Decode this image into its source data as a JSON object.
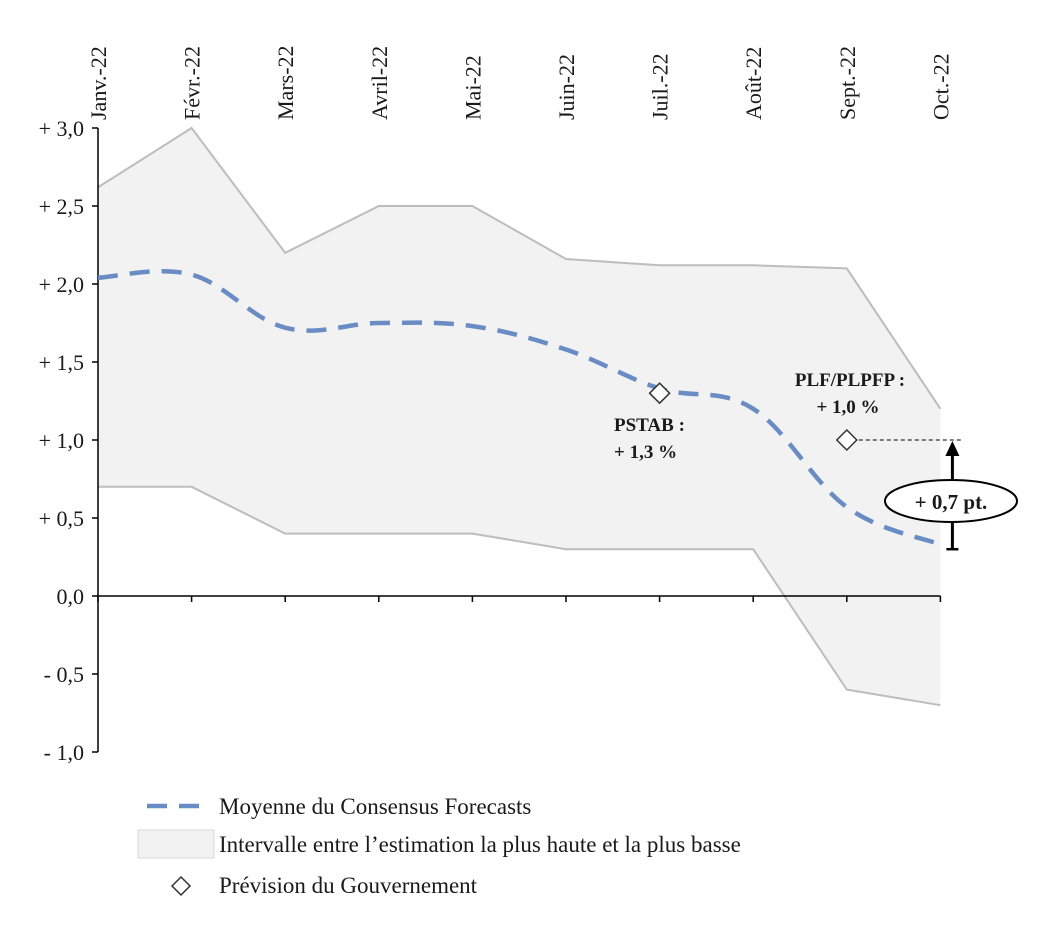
{
  "chart_data": {
    "type": "line",
    "categories": [
      "Janv.-22",
      "Févr.-22",
      "Mars-22",
      "Avril-22",
      "Mai-22",
      "Juin-22",
      "Juil.-22",
      "Août-22",
      "Sept.-22",
      "Oct.-22"
    ],
    "series": [
      {
        "name": "Moyenne du Consensus Forecasts",
        "style": "dashed-line",
        "color": "#6a8cc4",
        "values": [
          2.04,
          2.06,
          1.72,
          1.75,
          1.73,
          1.58,
          1.33,
          1.2,
          0.57,
          0.33
        ]
      },
      {
        "name": "Intervalle entre l’estimation la plus haute et la plus basse",
        "style": "band",
        "color": "#f2f2f2",
        "high": [
          2.62,
          3.0,
          2.2,
          2.5,
          2.5,
          2.16,
          2.12,
          2.12,
          2.1,
          1.2
        ],
        "low": [
          0.7,
          0.7,
          0.4,
          0.4,
          0.4,
          0.3,
          0.3,
          0.3,
          -0.6,
          -0.7
        ]
      },
      {
        "name": "Prévision du Gouvernement",
        "style": "diamond-marker",
        "points": [
          {
            "category": "Juil.-22",
            "value": 1.3
          },
          {
            "category": "Sept.-22",
            "value": 1.0
          }
        ]
      }
    ],
    "ylim": [
      -1.0,
      3.0
    ],
    "yticks": [
      3.0,
      2.5,
      2.0,
      1.5,
      1.0,
      0.5,
      0.0,
      -0.5,
      -1.0
    ],
    "ytick_labels": [
      "+ 3,0",
      "+ 2,5",
      "+ 2,0",
      "+ 1,5",
      "+ 1,0",
      "+ 0,5",
      "0,0",
      "- 0,5",
      "- 1,0"
    ],
    "xaxis_position": "top",
    "grid": false,
    "legend_position": "bottom-left",
    "annotations": [
      {
        "lines": [
          "PSTAB :",
          "+ 1,3 %"
        ],
        "target": "Juil.-22"
      },
      {
        "lines": [
          "PLF/PLPFP :",
          "+ 1,0 %"
        ],
        "target": "Sept.-22"
      }
    ],
    "gap_callout": {
      "label": "+ 0,7 pt.",
      "from": 0.3,
      "to": 1.0
    }
  }
}
